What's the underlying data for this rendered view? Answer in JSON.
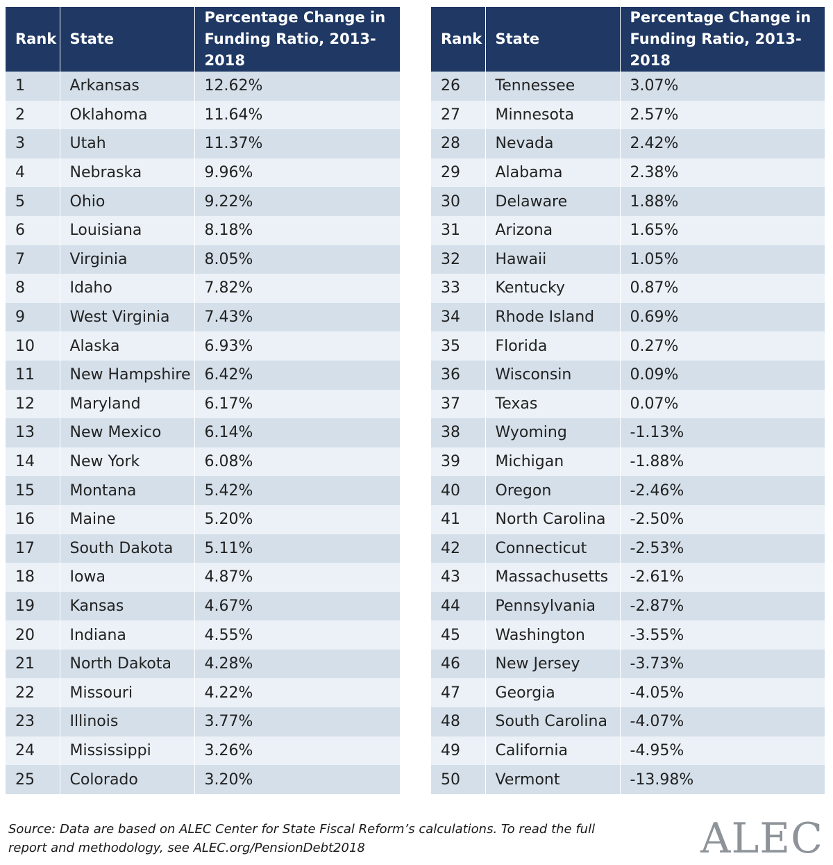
{
  "headers": {
    "rank": "Rank",
    "state": "State",
    "change_line1": "Percentage Change in",
    "change_line2": "Funding Ratio, 2013-2018"
  },
  "left_rows": [
    {
      "rank": "1",
      "state": "Arkansas",
      "change": "12.62%"
    },
    {
      "rank": "2",
      "state": "Oklahoma",
      "change": "11.64%"
    },
    {
      "rank": "3",
      "state": "Utah",
      "change": "11.37%"
    },
    {
      "rank": "4",
      "state": "Nebraska",
      "change": "9.96%"
    },
    {
      "rank": "5",
      "state": "Ohio",
      "change": "9.22%"
    },
    {
      "rank": "6",
      "state": "Louisiana",
      "change": "8.18%"
    },
    {
      "rank": "7",
      "state": "Virginia",
      "change": "8.05%"
    },
    {
      "rank": "8",
      "state": "Idaho",
      "change": "7.82%"
    },
    {
      "rank": "9",
      "state": "West Virginia",
      "change": "7.43%"
    },
    {
      "rank": "10",
      "state": "Alaska",
      "change": "6.93%"
    },
    {
      "rank": "11",
      "state": "New Hampshire",
      "change": "6.42%"
    },
    {
      "rank": "12",
      "state": "Maryland",
      "change": "6.17%"
    },
    {
      "rank": "13",
      "state": "New Mexico",
      "change": "6.14%"
    },
    {
      "rank": "14",
      "state": "New York",
      "change": "6.08%"
    },
    {
      "rank": "15",
      "state": "Montana",
      "change": "5.42%"
    },
    {
      "rank": "16",
      "state": "Maine",
      "change": "5.20%"
    },
    {
      "rank": "17",
      "state": "South Dakota",
      "change": "5.11%"
    },
    {
      "rank": "18",
      "state": "Iowa",
      "change": "4.87%"
    },
    {
      "rank": "19",
      "state": "Kansas",
      "change": "4.67%"
    },
    {
      "rank": "20",
      "state": "Indiana",
      "change": "4.55%"
    },
    {
      "rank": "21",
      "state": "North Dakota",
      "change": "4.28%"
    },
    {
      "rank": "22",
      "state": "Missouri",
      "change": "4.22%"
    },
    {
      "rank": "23",
      "state": "Illinois",
      "change": "3.77%"
    },
    {
      "rank": "24",
      "state": "Mississippi",
      "change": "3.26%"
    },
    {
      "rank": "25",
      "state": "Colorado",
      "change": "3.20%"
    }
  ],
  "right_rows": [
    {
      "rank": "26",
      "state": "Tennessee",
      "change": "3.07%"
    },
    {
      "rank": "27",
      "state": "Minnesota",
      "change": "2.57%"
    },
    {
      "rank": "28",
      "state": "Nevada",
      "change": "2.42%"
    },
    {
      "rank": "29",
      "state": "Alabama",
      "change": "2.38%"
    },
    {
      "rank": "30",
      "state": "Delaware",
      "change": "1.88%"
    },
    {
      "rank": "31",
      "state": "Arizona",
      "change": "1.65%"
    },
    {
      "rank": "32",
      "state": "Hawaii",
      "change": "1.05%"
    },
    {
      "rank": "33",
      "state": "Kentucky",
      "change": "0.87%"
    },
    {
      "rank": "34",
      "state": "Rhode Island",
      "change": "0.69%"
    },
    {
      "rank": "35",
      "state": "Florida",
      "change": "0.27%"
    },
    {
      "rank": "36",
      "state": "Wisconsin",
      "change": "0.09%"
    },
    {
      "rank": "37",
      "state": "Texas",
      "change": "0.07%"
    },
    {
      "rank": "38",
      "state": "Wyoming",
      "change": "-1.13%"
    },
    {
      "rank": "39",
      "state": "Michigan",
      "change": "-1.88%"
    },
    {
      "rank": "40",
      "state": "Oregon",
      "change": "-2.46%"
    },
    {
      "rank": "41",
      "state": "North Carolina",
      "change": "-2.50%"
    },
    {
      "rank": "42",
      "state": "Connecticut",
      "change": "-2.53%"
    },
    {
      "rank": "43",
      "state": "Massachusetts",
      "change": "-2.61%"
    },
    {
      "rank": "44",
      "state": "Pennsylvania",
      "change": "-2.87%"
    },
    {
      "rank": "45",
      "state": "Washington",
      "change": "-3.55%"
    },
    {
      "rank": "46",
      "state": "New Jersey",
      "change": "-3.73%"
    },
    {
      "rank": "47",
      "state": "Georgia",
      "change": "-4.05%"
    },
    {
      "rank": "48",
      "state": "South Carolina",
      "change": "-4.07%"
    },
    {
      "rank": "49",
      "state": "California",
      "change": "-4.95%"
    },
    {
      "rank": "50",
      "state": "Vermont",
      "change": "-13.98%"
    }
  ],
  "source_text": "Source: Data are based on ALEC Center for State Fiscal Reform’s calculations. To read the full report and methodology, see ALEC.org/PensionDebt2018",
  "logo": "ALEC",
  "colors": {
    "header_bg": "#1f3864",
    "row_dark": "#d4dfe9",
    "row_light": "#ebf1f6",
    "logo": "#8d9398"
  }
}
